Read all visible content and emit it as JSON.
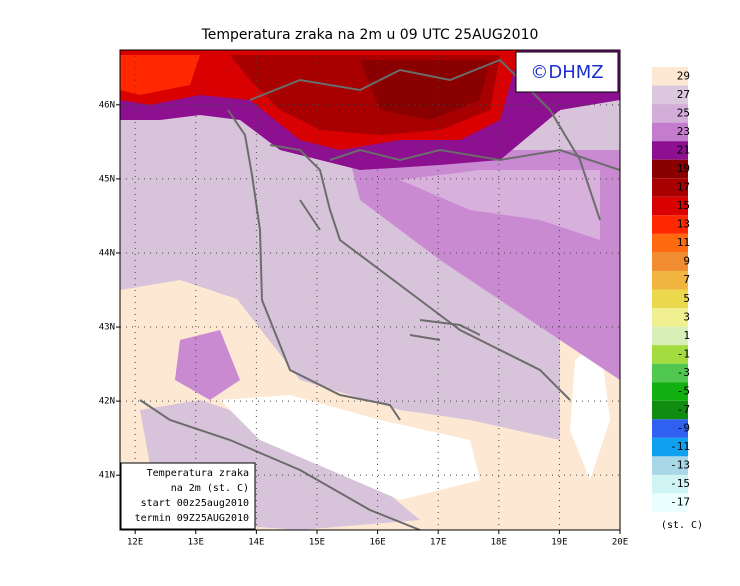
{
  "title": "Temperatura zraka na 2m u 09 UTC 25AUG2010",
  "logo": "©DHMZ",
  "map": {
    "xlim": [
      11.75,
      20
    ],
    "ylim": [
      40.26,
      46.74
    ],
    "xticks": [
      {
        "value": 12,
        "label": "12E"
      },
      {
        "value": 13,
        "label": "13E"
      },
      {
        "value": 14,
        "label": "14E"
      },
      {
        "value": 15,
        "label": "15E"
      },
      {
        "value": 16,
        "label": "16E"
      },
      {
        "value": 17,
        "label": "17E"
      },
      {
        "value": 18,
        "label": "18E"
      },
      {
        "value": 19,
        "label": "19E"
      },
      {
        "value": 20,
        "label": "20E"
      }
    ],
    "yticks": [
      {
        "value": 41,
        "label": "41N"
      },
      {
        "value": 42,
        "label": "42N"
      },
      {
        "value": 43,
        "label": "43N"
      },
      {
        "value": 44,
        "label": "44N"
      },
      {
        "value": 45,
        "label": "45N"
      },
      {
        "value": 46,
        "label": "46N"
      }
    ]
  },
  "info_box": [
    "Temperatura zraka",
    "na 2m (st. C)",
    "start 00z25aug2010",
    "termin 09Z25AUG2010"
  ],
  "legend": {
    "unit": "(st. C)",
    "items": [
      {
        "label": 29,
        "color": "#fde8d4"
      },
      {
        "label": 27,
        "color": "#dcc8de"
      },
      {
        "label": 25,
        "color": "#d2aed8"
      },
      {
        "label": 23,
        "color": "#c47ccc"
      },
      {
        "label": 21,
        "color": "#8c1090"
      },
      {
        "label": 19,
        "color": "#8a0000"
      },
      {
        "label": 17,
        "color": "#a80000"
      },
      {
        "label": 15,
        "color": "#d80000"
      },
      {
        "label": 13,
        "color": "#ff2800"
      },
      {
        "label": 11,
        "color": "#ff6a10"
      },
      {
        "label": 9,
        "color": "#f28c30"
      },
      {
        "label": 7,
        "color": "#f0b440"
      },
      {
        "label": 5,
        "color": "#ecd84c"
      },
      {
        "label": 3,
        "color": "#f0f090"
      },
      {
        "label": 1,
        "color": "#d8f0b8"
      },
      {
        "label": -1,
        "color": "#a4dc40"
      },
      {
        "label": -3,
        "color": "#50c850"
      },
      {
        "label": -5,
        "color": "#10b010"
      },
      {
        "label": -7,
        "color": "#108c10"
      },
      {
        "label": -9,
        "color": "#3060f0"
      },
      {
        "label": -11,
        "color": "#10a0f0"
      },
      {
        "label": -13,
        "color": "#a8d8e8"
      },
      {
        "label": -15,
        "color": "#d0f4f4"
      },
      {
        "label": -17,
        "color": "#ecffff"
      }
    ]
  }
}
